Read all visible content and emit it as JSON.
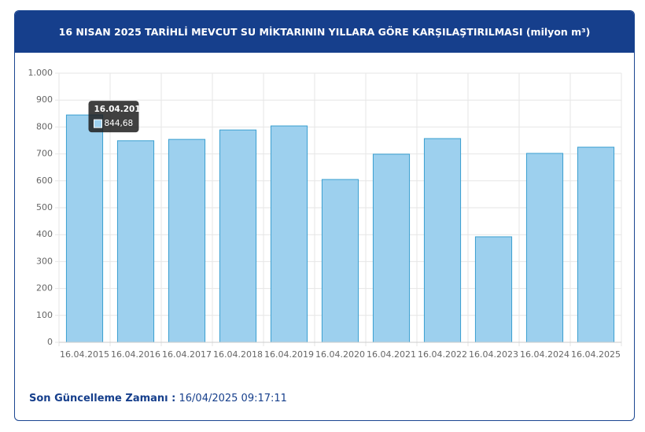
{
  "header": {
    "title": "16 NISAN 2025 TARİHLİ MEVCUT SU MİKTARININ YILLARA GÖRE KARŞILAŞTIRILMASI (milyon m³)"
  },
  "chart_data": {
    "type": "bar",
    "categories": [
      "16.04.2015",
      "16.04.2016",
      "16.04.2017",
      "16.04.2018",
      "16.04.2019",
      "16.04.2020",
      "16.04.2021",
      "16.04.2022",
      "16.04.2023",
      "16.04.2024",
      "16.04.2025"
    ],
    "values": [
      844.68,
      749,
      754,
      789,
      804,
      605,
      699,
      757,
      392,
      702,
      725
    ],
    "value_labels": [
      "844,68",
      null,
      null,
      null,
      null,
      null,
      null,
      null,
      null,
      null,
      null
    ],
    "color": "#9dd0ee",
    "ylim": [
      0,
      1000
    ],
    "yticks": [
      0,
      100,
      200,
      300,
      400,
      500,
      600,
      700,
      800,
      900,
      {
        "value": 1000,
        "label": "1.000"
      }
    ],
    "grid": true
  },
  "footer": {
    "label": "Son Güncelleme Zamanı :",
    "value": "16/04/2025 09:17:11"
  }
}
